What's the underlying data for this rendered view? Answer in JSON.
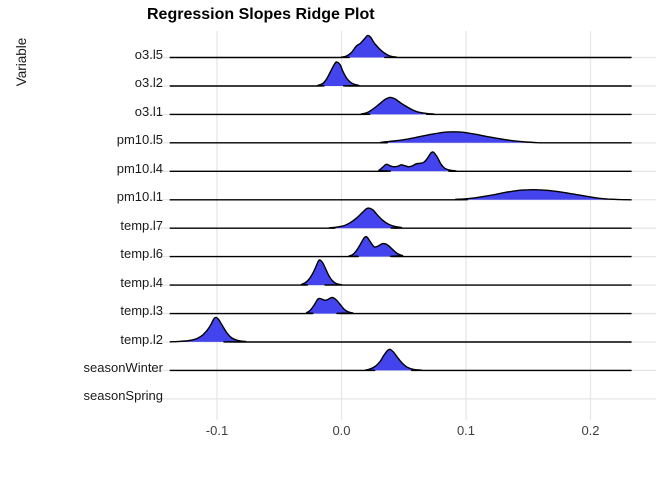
{
  "title": "Regression Slopes Ridge Plot",
  "chart_data": {
    "type": "area",
    "variant": "ridgeline-density",
    "title": "Regression Slopes Ridge Plot",
    "xlabel": "",
    "ylabel": "Variable",
    "xlim": [
      -0.154,
      0.253
    ],
    "x_ticks": [
      -0.1,
      0.0,
      0.1,
      0.2
    ],
    "x_tick_labels": [
      "-0.1",
      "0.0",
      "0.1",
      "0.2"
    ],
    "grid": true,
    "legend": false,
    "fill_color": "#4444ee",
    "line_color": "#000000",
    "gridline_color": "#e6e6e6",
    "categories": [
      "o3.l5",
      "o3.l2",
      "o3.l1",
      "pm10.l5",
      "pm10.l4",
      "pm10.l1",
      "temp.l7",
      "temp.l6",
      "temp.l4",
      "temp.l3",
      "temp.l2",
      "seasonWinter",
      "seasonSpring"
    ],
    "series": [
      {
        "name": "o3.l5",
        "peak_x": 0.021,
        "points": [
          [
            -0.138,
            0
          ],
          [
            -0.005,
            0
          ],
          [
            0.0,
            0.4
          ],
          [
            0.004,
            1.5
          ],
          [
            0.008,
            5
          ],
          [
            0.012,
            11.5
          ],
          [
            0.015,
            14
          ],
          [
            0.018,
            18
          ],
          [
            0.021,
            22
          ],
          [
            0.0235,
            20
          ],
          [
            0.026,
            15
          ],
          [
            0.028,
            12
          ],
          [
            0.031,
            8
          ],
          [
            0.035,
            4
          ],
          [
            0.039,
            1.5
          ],
          [
            0.044,
            0.4
          ],
          [
            0.05,
            0
          ],
          [
            0.233,
            0
          ]
        ]
      },
      {
        "name": "o3.l2",
        "peak_x": -0.004,
        "points": [
          [
            -0.138,
            0
          ],
          [
            -0.024,
            0
          ],
          [
            -0.019,
            0.6
          ],
          [
            -0.015,
            2.5
          ],
          [
            -0.012,
            7
          ],
          [
            -0.009,
            14
          ],
          [
            -0.006,
            21
          ],
          [
            -0.004,
            24
          ],
          [
            -0.001,
            21
          ],
          [
            0.001,
            15
          ],
          [
            0.004,
            8
          ],
          [
            0.007,
            4
          ],
          [
            0.01,
            1.8
          ],
          [
            0.014,
            0.6
          ],
          [
            0.019,
            0
          ],
          [
            0.233,
            0
          ]
        ]
      },
      {
        "name": "o3.l1",
        "peak_x": 0.038,
        "points": [
          [
            -0.138,
            0
          ],
          [
            0.01,
            0
          ],
          [
            0.016,
            0.5
          ],
          [
            0.021,
            2
          ],
          [
            0.026,
            6
          ],
          [
            0.031,
            11
          ],
          [
            0.035,
            15
          ],
          [
            0.039,
            17
          ],
          [
            0.043,
            15.5
          ],
          [
            0.047,
            12
          ],
          [
            0.052,
            8
          ],
          [
            0.057,
            4.5
          ],
          [
            0.062,
            2.2
          ],
          [
            0.068,
            1
          ],
          [
            0.074,
            0.4
          ],
          [
            0.082,
            0
          ],
          [
            0.233,
            0
          ]
        ]
      },
      {
        "name": "pm10.l5",
        "peak_x": 0.09,
        "points": [
          [
            -0.138,
            0
          ],
          [
            0.022,
            0
          ],
          [
            0.032,
            0.6
          ],
          [
            0.042,
            1.8
          ],
          [
            0.052,
            3.5
          ],
          [
            0.062,
            6
          ],
          [
            0.072,
            8.5
          ],
          [
            0.082,
            10.5
          ],
          [
            0.09,
            11
          ],
          [
            0.098,
            10.5
          ],
          [
            0.108,
            8.5
          ],
          [
            0.118,
            6
          ],
          [
            0.128,
            3.8
          ],
          [
            0.138,
            2
          ],
          [
            0.148,
            0.8
          ],
          [
            0.158,
            0.2
          ],
          [
            0.168,
            0
          ],
          [
            0.233,
            0
          ]
        ]
      },
      {
        "name": "pm10.l4",
        "peak_x": 0.073,
        "points": [
          [
            -0.138,
            0
          ],
          [
            0.026,
            0
          ],
          [
            0.03,
            1
          ],
          [
            0.033,
            4
          ],
          [
            0.036,
            7
          ],
          [
            0.039,
            5.5
          ],
          [
            0.042,
            4.5
          ],
          [
            0.045,
            5
          ],
          [
            0.048,
            6.5
          ],
          [
            0.051,
            5.5
          ],
          [
            0.054,
            4.5
          ],
          [
            0.057,
            5.5
          ],
          [
            0.06,
            7.5
          ],
          [
            0.063,
            8
          ],
          [
            0.066,
            9
          ],
          [
            0.069,
            13
          ],
          [
            0.072,
            18.5
          ],
          [
            0.074,
            19
          ],
          [
            0.077,
            14
          ],
          [
            0.08,
            7
          ],
          [
            0.083,
            3
          ],
          [
            0.087,
            1.2
          ],
          [
            0.092,
            0.3
          ],
          [
            0.098,
            0
          ],
          [
            0.233,
            0
          ]
        ]
      },
      {
        "name": "pm10.l1",
        "peak_x": 0.155,
        "points": [
          [
            -0.138,
            0
          ],
          [
            0.082,
            0
          ],
          [
            0.092,
            0.4
          ],
          [
            0.102,
            1.2
          ],
          [
            0.112,
            2.8
          ],
          [
            0.122,
            5
          ],
          [
            0.132,
            7.5
          ],
          [
            0.142,
            9.3
          ],
          [
            0.15,
            10
          ],
          [
            0.158,
            10
          ],
          [
            0.166,
            9.3
          ],
          [
            0.175,
            8
          ],
          [
            0.185,
            6
          ],
          [
            0.195,
            3.8
          ],
          [
            0.205,
            1.8
          ],
          [
            0.214,
            0.7
          ],
          [
            0.224,
            0.2
          ],
          [
            0.233,
            0
          ]
        ]
      },
      {
        "name": "temp.l7",
        "peak_x": 0.022,
        "points": [
          [
            -0.138,
            0
          ],
          [
            -0.016,
            0
          ],
          [
            -0.01,
            0.3
          ],
          [
            -0.004,
            1
          ],
          [
            0.002,
            2.5
          ],
          [
            0.007,
            5.5
          ],
          [
            0.012,
            10
          ],
          [
            0.017,
            16
          ],
          [
            0.021,
            20
          ],
          [
            0.025,
            18.5
          ],
          [
            0.029,
            13
          ],
          [
            0.033,
            8
          ],
          [
            0.037,
            4.5
          ],
          [
            0.042,
            2
          ],
          [
            0.048,
            0.7
          ],
          [
            0.055,
            0
          ],
          [
            0.233,
            0
          ]
        ]
      },
      {
        "name": "temp.l6",
        "peak_x": 0.02,
        "points": [
          [
            -0.138,
            0
          ],
          [
            0.002,
            0
          ],
          [
            0.006,
            0.6
          ],
          [
            0.009,
            2
          ],
          [
            0.012,
            6
          ],
          [
            0.015,
            12
          ],
          [
            0.018,
            18.5
          ],
          [
            0.02,
            20
          ],
          [
            0.022,
            17
          ],
          [
            0.025,
            11.5
          ],
          [
            0.027,
            9.5
          ],
          [
            0.03,
            11
          ],
          [
            0.033,
            13
          ],
          [
            0.036,
            12.5
          ],
          [
            0.039,
            9.5
          ],
          [
            0.042,
            6
          ],
          [
            0.045,
            3
          ],
          [
            0.049,
            1
          ],
          [
            0.054,
            0
          ],
          [
            0.233,
            0
          ]
        ]
      },
      {
        "name": "temp.l4",
        "peak_x": -0.018,
        "points": [
          [
            -0.138,
            0
          ],
          [
            -0.036,
            0
          ],
          [
            -0.032,
            0.8
          ],
          [
            -0.029,
            2.5
          ],
          [
            -0.026,
            6
          ],
          [
            -0.023,
            12
          ],
          [
            -0.02,
            20
          ],
          [
            -0.018,
            25
          ],
          [
            -0.0155,
            23
          ],
          [
            -0.013,
            17
          ],
          [
            -0.01,
            9
          ],
          [
            -0.007,
            4
          ],
          [
            -0.004,
            1.5
          ],
          [
            0.0,
            0.4
          ],
          [
            0.005,
            0
          ],
          [
            0.233,
            0
          ]
        ]
      },
      {
        "name": "temp.l3",
        "peak_x": -0.008,
        "points": [
          [
            -0.138,
            0
          ],
          [
            -0.032,
            0
          ],
          [
            -0.028,
            1
          ],
          [
            -0.025,
            3.5
          ],
          [
            -0.022,
            8.5
          ],
          [
            -0.019,
            14.5
          ],
          [
            -0.017,
            15
          ],
          [
            -0.014,
            13.5
          ],
          [
            -0.012,
            13.5
          ],
          [
            -0.009,
            15.5
          ],
          [
            -0.007,
            16
          ],
          [
            -0.004,
            13.5
          ],
          [
            -0.001,
            9
          ],
          [
            0.002,
            4.5
          ],
          [
            0.005,
            2
          ],
          [
            0.009,
            0.6
          ],
          [
            0.014,
            0
          ],
          [
            0.233,
            0
          ]
        ]
      },
      {
        "name": "temp.l2",
        "peak_x": -0.102,
        "points": [
          [
            -0.138,
            0.2
          ],
          [
            -0.13,
            0.6
          ],
          [
            -0.122,
            1.5
          ],
          [
            -0.116,
            3.5
          ],
          [
            -0.111,
            7.5
          ],
          [
            -0.106,
            15
          ],
          [
            -0.102,
            24
          ],
          [
            -0.099,
            23
          ],
          [
            -0.096,
            17
          ],
          [
            -0.092,
            9
          ],
          [
            -0.088,
            4
          ],
          [
            -0.083,
            1.5
          ],
          [
            -0.077,
            0.5
          ],
          [
            -0.07,
            0
          ],
          [
            0.233,
            0
          ]
        ]
      },
      {
        "name": "seasonWinter",
        "peak_x": 0.038,
        "points": [
          [
            -0.138,
            0
          ],
          [
            0.014,
            0
          ],
          [
            0.019,
            0.4
          ],
          [
            0.023,
            1.5
          ],
          [
            0.027,
            4
          ],
          [
            0.031,
            9
          ],
          [
            0.034,
            15
          ],
          [
            0.037,
            20
          ],
          [
            0.039,
            21
          ],
          [
            0.042,
            18
          ],
          [
            0.045,
            13
          ],
          [
            0.049,
            7
          ],
          [
            0.053,
            3
          ],
          [
            0.058,
            1
          ],
          [
            0.064,
            0.3
          ],
          [
            0.07,
            0
          ],
          [
            0.233,
            0
          ]
        ]
      },
      {
        "name": "seasonSpring",
        "peak_x": null,
        "points": []
      }
    ]
  }
}
